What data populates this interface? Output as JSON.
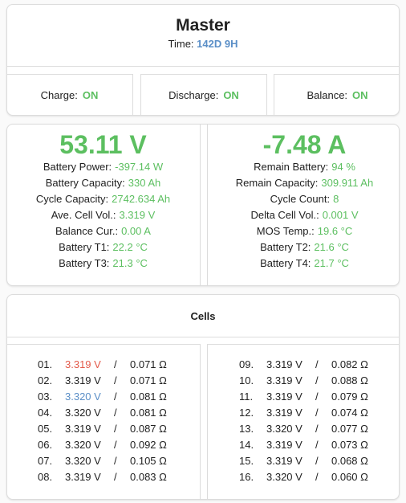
{
  "header": {
    "title": "Master",
    "time_label": "Time:",
    "time_value": "142D 9H"
  },
  "toggles": [
    {
      "label": "Charge:",
      "value": "ON"
    },
    {
      "label": "Discharge:",
      "value": "ON"
    },
    {
      "label": "Balance:",
      "value": "ON"
    }
  ],
  "stats": {
    "voltage": "53.11 V",
    "current": "-7.48 A",
    "left": [
      {
        "label": "Battery Power:",
        "value": "-397.14 W"
      },
      {
        "label": "Battery Capacity:",
        "value": "330 Ah"
      },
      {
        "label": "Cycle Capacity:",
        "value": "2742.634 Ah"
      },
      {
        "label": "Ave. Cell Vol.:",
        "value": "3.319 V"
      },
      {
        "label": "Balance Cur.:",
        "value": "0.00 A"
      },
      {
        "label": "Battery T1:",
        "value": "22.2 °C"
      },
      {
        "label": "Battery T3:",
        "value": "21.3 °C"
      }
    ],
    "right": [
      {
        "label": "Remain Battery:",
        "value": "94 %"
      },
      {
        "label": "Remain Capacity:",
        "value": "309.911 Ah"
      },
      {
        "label": "Cycle Count:",
        "value": "8"
      },
      {
        "label": "Delta Cell Vol.:",
        "value": "0.001 V"
      },
      {
        "label": "MOS Temp.:",
        "value": "19.6 °C"
      },
      {
        "label": "Battery T2:",
        "value": "21.6 °C"
      },
      {
        "label": "Battery T4:",
        "value": "21.7 °C"
      }
    ]
  },
  "cells": {
    "title": "Cells",
    "separator": "/",
    "left": [
      {
        "index": "01.",
        "voltage": "3.319 V",
        "resistance": "0.071 Ω",
        "highlight": "red"
      },
      {
        "index": "02.",
        "voltage": "3.319 V",
        "resistance": "0.071 Ω",
        "highlight": ""
      },
      {
        "index": "03.",
        "voltage": "3.320 V",
        "resistance": "0.081 Ω",
        "highlight": "blue"
      },
      {
        "index": "04.",
        "voltage": "3.320 V",
        "resistance": "0.081 Ω",
        "highlight": ""
      },
      {
        "index": "05.",
        "voltage": "3.319 V",
        "resistance": "0.087 Ω",
        "highlight": ""
      },
      {
        "index": "06.",
        "voltage": "3.320 V",
        "resistance": "0.092 Ω",
        "highlight": ""
      },
      {
        "index": "07.",
        "voltage": "3.320 V",
        "resistance": "0.105 Ω",
        "highlight": ""
      },
      {
        "index": "08.",
        "voltage": "3.319 V",
        "resistance": "0.083 Ω",
        "highlight": ""
      }
    ],
    "right": [
      {
        "index": "09.",
        "voltage": "3.319 V",
        "resistance": "0.082 Ω",
        "highlight": ""
      },
      {
        "index": "10.",
        "voltage": "3.319 V",
        "resistance": "0.088 Ω",
        "highlight": ""
      },
      {
        "index": "11.",
        "voltage": "3.319 V",
        "resistance": "0.079 Ω",
        "highlight": ""
      },
      {
        "index": "12.",
        "voltage": "3.319 V",
        "resistance": "0.074 Ω",
        "highlight": ""
      },
      {
        "index": "13.",
        "voltage": "3.320 V",
        "resistance": "0.077 Ω",
        "highlight": ""
      },
      {
        "index": "14.",
        "voltage": "3.319 V",
        "resistance": "0.073 Ω",
        "highlight": ""
      },
      {
        "index": "15.",
        "voltage": "3.319 V",
        "resistance": "0.068 Ω",
        "highlight": ""
      },
      {
        "index": "16.",
        "voltage": "3.320 V",
        "resistance": "0.060 Ω",
        "highlight": ""
      }
    ]
  },
  "colors": {
    "accent_green": "#5cbf60",
    "accent_blue": "#5b8fc7",
    "max_red": "#e35a4a"
  }
}
